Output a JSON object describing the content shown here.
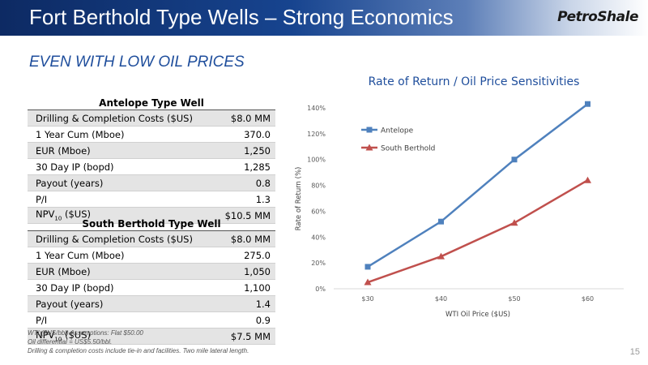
{
  "header": {
    "title": "Fort Berthold Type Wells – Strong Economics",
    "logo": "PetroShale"
  },
  "subtitle": "EVEN WITH LOW OIL PRICES",
  "antelope": {
    "title": "Antelope Type Well",
    "rows": [
      {
        "label": "Drilling & Completion Costs ($US)",
        "value": "$8.0 MM"
      },
      {
        "label": "1 Year Cum (Mboe)",
        "value": "370.0"
      },
      {
        "label": "EUR (Mboe)",
        "value": "1,250"
      },
      {
        "label": "30 Day IP (bopd)",
        "value": "1,285"
      },
      {
        "label": "Payout (years)",
        "value": "0.8"
      },
      {
        "label": "P/I",
        "value": "1.3"
      },
      {
        "label_main": "NPV",
        "label_sub": "10",
        "label_tail": " ($US)",
        "value": "$10.5 MM"
      }
    ]
  },
  "south": {
    "title": "South Berthold Type Well",
    "rows": [
      {
        "label": "Drilling & Completion Costs ($US)",
        "value": "$8.0 MM"
      },
      {
        "label": "1 Year Cum (Mboe)",
        "value": "275.0"
      },
      {
        "label": "EUR (Mboe)",
        "value": "1,050"
      },
      {
        "label": "30 Day IP (bopd)",
        "value": "1,100"
      },
      {
        "label": "Payout (years)",
        "value": "1.4"
      },
      {
        "label": "P/I",
        "value": "0.9"
      },
      {
        "label_main": "NPV",
        "label_sub": "10",
        "label_tail": " ($US)",
        "value": "$7.5 MM"
      }
    ]
  },
  "footnotes": [
    "WTI ($US/bbl) Assumptions:  Flat $50.00",
    "Oil differential = US$5.50/bbl.",
    "Drilling & completion costs include tie-in and facilities.  Two mile lateral length."
  ],
  "page_number": "15",
  "chart_data": {
    "type": "line",
    "title": "Rate of Return / Oil Price Sensitivities",
    "xlabel": "WTI Oil Price ($US)",
    "ylabel": "Rate of Return (%)",
    "categories": [
      "$30",
      "$40",
      "$50",
      "$60"
    ],
    "yticks": [
      "0%",
      "20%",
      "40%",
      "60%",
      "80%",
      "100%",
      "120%",
      "140%"
    ],
    "ylim": [
      0,
      140
    ],
    "grid": false,
    "legend": "top-left",
    "series": [
      {
        "name": "Antelope",
        "values": [
          17,
          52,
          100,
          143
        ],
        "color": "#4f81bd",
        "marker": "square"
      },
      {
        "name": "South Berthold",
        "values": [
          5,
          25,
          51,
          84
        ],
        "color": "#c0504d",
        "marker": "triangle"
      }
    ]
  }
}
